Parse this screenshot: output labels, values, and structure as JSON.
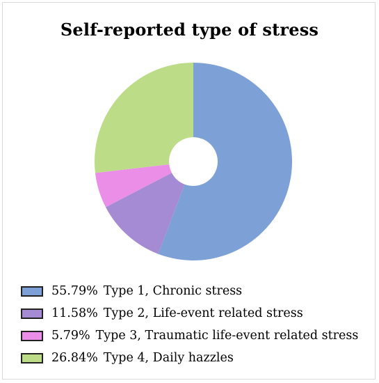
{
  "chart_data": {
    "type": "pie",
    "title": "Self-reported type of stress",
    "donut": true,
    "legend_position": "bottom-left",
    "slices": [
      {
        "percent_label": "55.79%",
        "label": "Type 1, Chronic stress",
        "value": 55.79,
        "color": "#7da1d6"
      },
      {
        "percent_label": "11.58%",
        "label": "Type 2, Life-event related stress",
        "value": 11.58,
        "color": "#a48bd3"
      },
      {
        "percent_label": "5.79%",
        "label": "Type 3, Traumatic life-event related stress",
        "value": 5.79,
        "color": "#ea8ee8"
      },
      {
        "percent_label": "26.84%",
        "label": "Type 4, Daily hazzles",
        "value": 26.84,
        "color": "#bcdc88"
      }
    ]
  }
}
